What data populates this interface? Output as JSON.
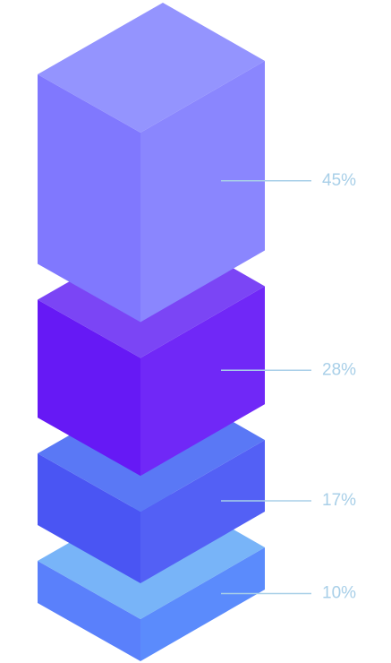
{
  "chart_data": {
    "type": "blocks",
    "values": [
      10,
      17,
      28,
      45
    ],
    "value_labels": [
      "10%",
      "17%",
      "28%",
      "45%"
    ],
    "colors": [
      {
        "top": "#78b4f8",
        "left": "#5a80fb",
        "right": "#5b8bfc"
      },
      {
        "top": "#5a78f5",
        "left": "#4a55f3",
        "right": "#5360f5"
      },
      {
        "top": "#7b45f5",
        "left": "#6619f5",
        "right": "#7028f7"
      },
      {
        "top": "#9494fe",
        "left": "#8078fe",
        "right": "#8a86fe"
      }
    ]
  }
}
